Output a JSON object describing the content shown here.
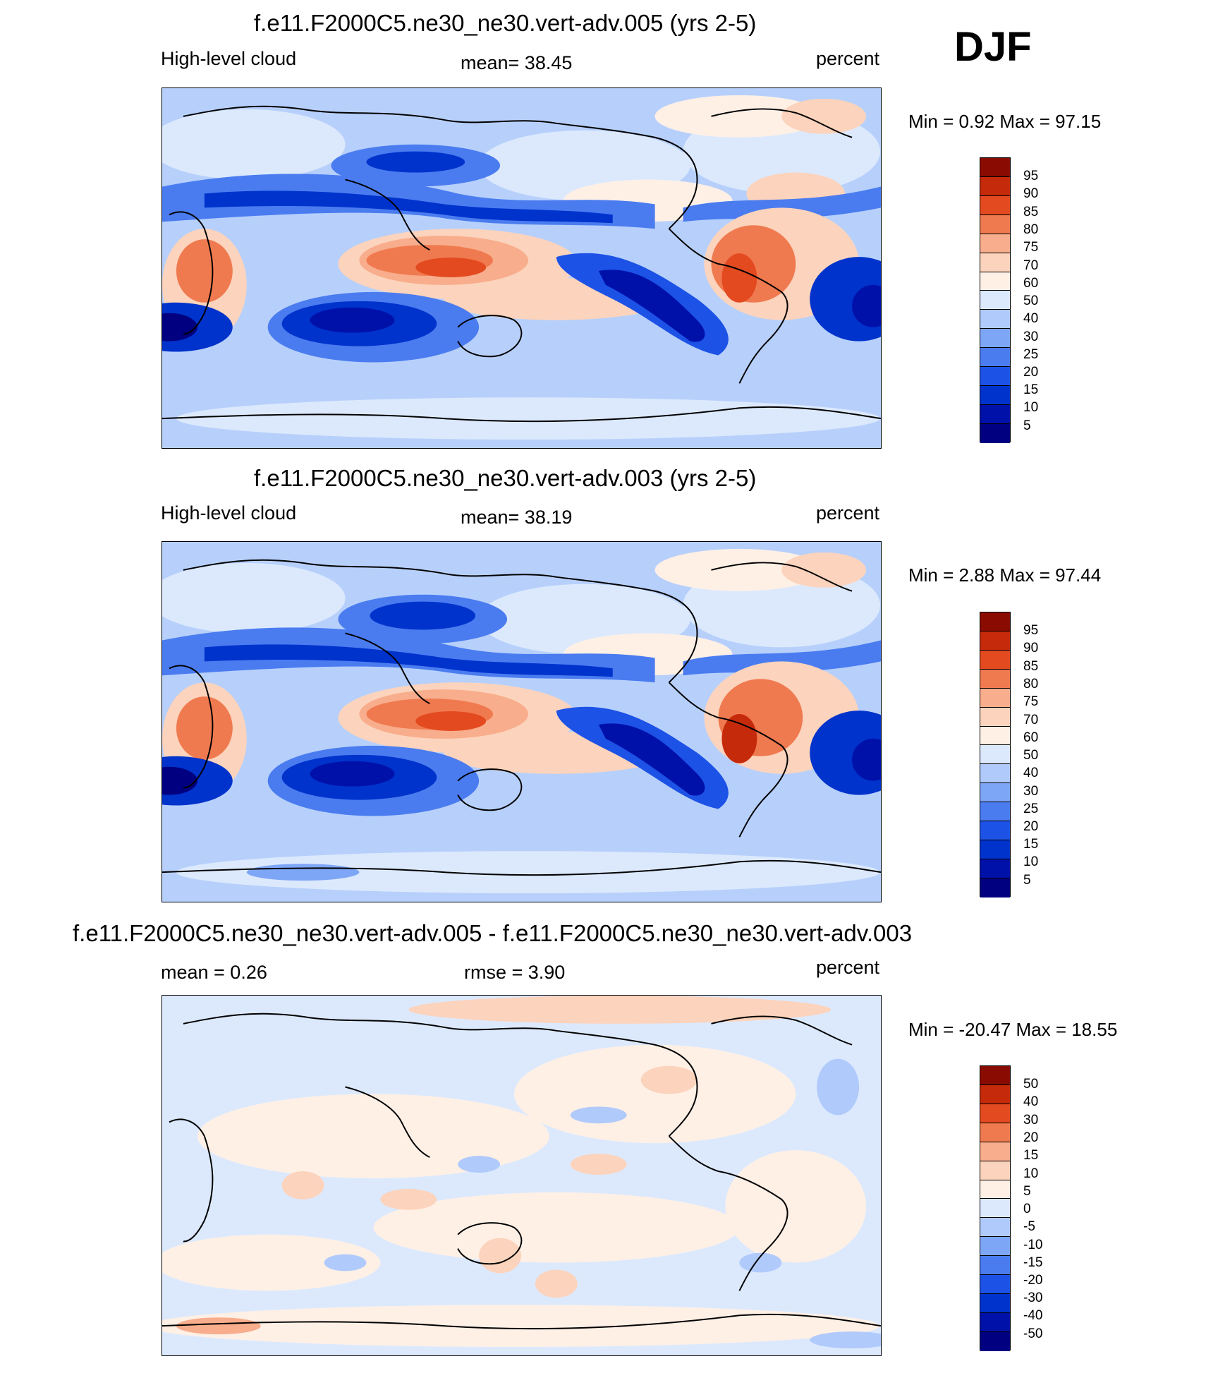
{
  "season": "DJF",
  "colors": {
    "abs_scale": [
      "#000080",
      "#0011aa",
      "#0033cc",
      "#1d52e6",
      "#4a7cf0",
      "#7ea6f7",
      "#b0cafb",
      "#dce9fd",
      "#fff0e6",
      "#fcd3bc",
      "#f8ad8c",
      "#f07a50",
      "#e34a20",
      "#c52a0a",
      "#8a0b02"
    ],
    "diff_scale": [
      "#000080",
      "#0011aa",
      "#0033cc",
      "#1d52e6",
      "#4a7cf0",
      "#7ea6f7",
      "#b0cafb",
      "#dce9fd",
      "#fff0e6",
      "#fcd3bc",
      "#f8ad8c",
      "#f07a50",
      "#e34a20",
      "#c52a0a",
      "#8a0b02"
    ],
    "land_outline": "#000000"
  },
  "panels": [
    {
      "title": "f.e11.F2000C5.ne30_ne30.vert-adv.005 (yrs 2-5)",
      "left_label": "High-level cloud",
      "center_label": "mean=  38.45",
      "right_label": "percent",
      "minmax": "Min =    0.92 Max =  97.15",
      "colorbar_labels": [
        "95",
        "90",
        "85",
        "80",
        "75",
        "70",
        "60",
        "50",
        "40",
        "30",
        "25",
        "20",
        "15",
        "10",
        "5"
      ]
    },
    {
      "title": "f.e11.F2000C5.ne30_ne30.vert-adv.003 (yrs 2-5)",
      "left_label": "High-level cloud",
      "center_label": "mean=  38.19",
      "right_label": "percent",
      "minmax": "Min =    2.88 Max =  97.44",
      "colorbar_labels": [
        "95",
        "90",
        "85",
        "80",
        "75",
        "70",
        "60",
        "50",
        "40",
        "30",
        "25",
        "20",
        "15",
        "10",
        "5"
      ]
    },
    {
      "title": "f.e11.F2000C5.ne30_ne30.vert-adv.005 - f.e11.F2000C5.ne30_ne30.vert-adv.003",
      "left_label": "mean =    0.26",
      "center_label": "rmse =    3.90",
      "right_label": "percent",
      "minmax": "Min = -20.47 Max =  18.55",
      "colorbar_labels": [
        "50",
        "40",
        "30",
        "20",
        "15",
        "10",
        "5",
        "0",
        "-5",
        "-10",
        "-15",
        "-20",
        "-30",
        "-40",
        "-50"
      ]
    }
  ]
}
